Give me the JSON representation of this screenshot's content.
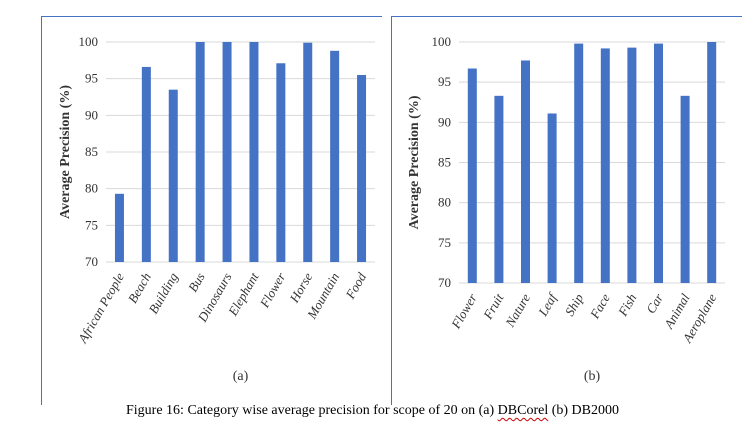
{
  "chart_data": [
    {
      "type": "bar",
      "ylabel": "Average Precision (%)",
      "subcaption": "(a)",
      "categories": [
        "African People",
        "Beach",
        "Building",
        "Bus",
        "Dinosaurs",
        "Elephant",
        "Flower",
        "Horse",
        "Mountain",
        "Food"
      ],
      "values": [
        79.3,
        96.6,
        93.5,
        100,
        100,
        100,
        97.1,
        99.9,
        98.8,
        95.5
      ],
      "ylim": [
        70,
        100
      ],
      "yticks": [
        "70",
        "75",
        "80",
        "85",
        "90",
        "95",
        "100"
      ],
      "grid": true,
      "bar_color": "#4472c4"
    },
    {
      "type": "bar",
      "ylabel": "Average Precision (%)",
      "subcaption": "(b)",
      "categories": [
        "Flower",
        "Fruit",
        "Nature",
        "Leaf",
        "Ship",
        "Face",
        "Fish",
        "Car",
        "Animal",
        "Aeroplane"
      ],
      "values": [
        96.7,
        93.3,
        97.7,
        91.1,
        99.8,
        99.2,
        99.3,
        99.8,
        93.3,
        100
      ],
      "ylim": [
        70,
        100
      ],
      "yticks": [
        "70",
        "75",
        "80",
        "85",
        "90",
        "95",
        "100"
      ],
      "grid": true,
      "bar_color": "#4472c4"
    }
  ],
  "caption": {
    "before": "Figure 16: Category wise average precision for scope of 20 on (a) ",
    "flagged": "DBCorel",
    "after": " (b) DB2000"
  }
}
